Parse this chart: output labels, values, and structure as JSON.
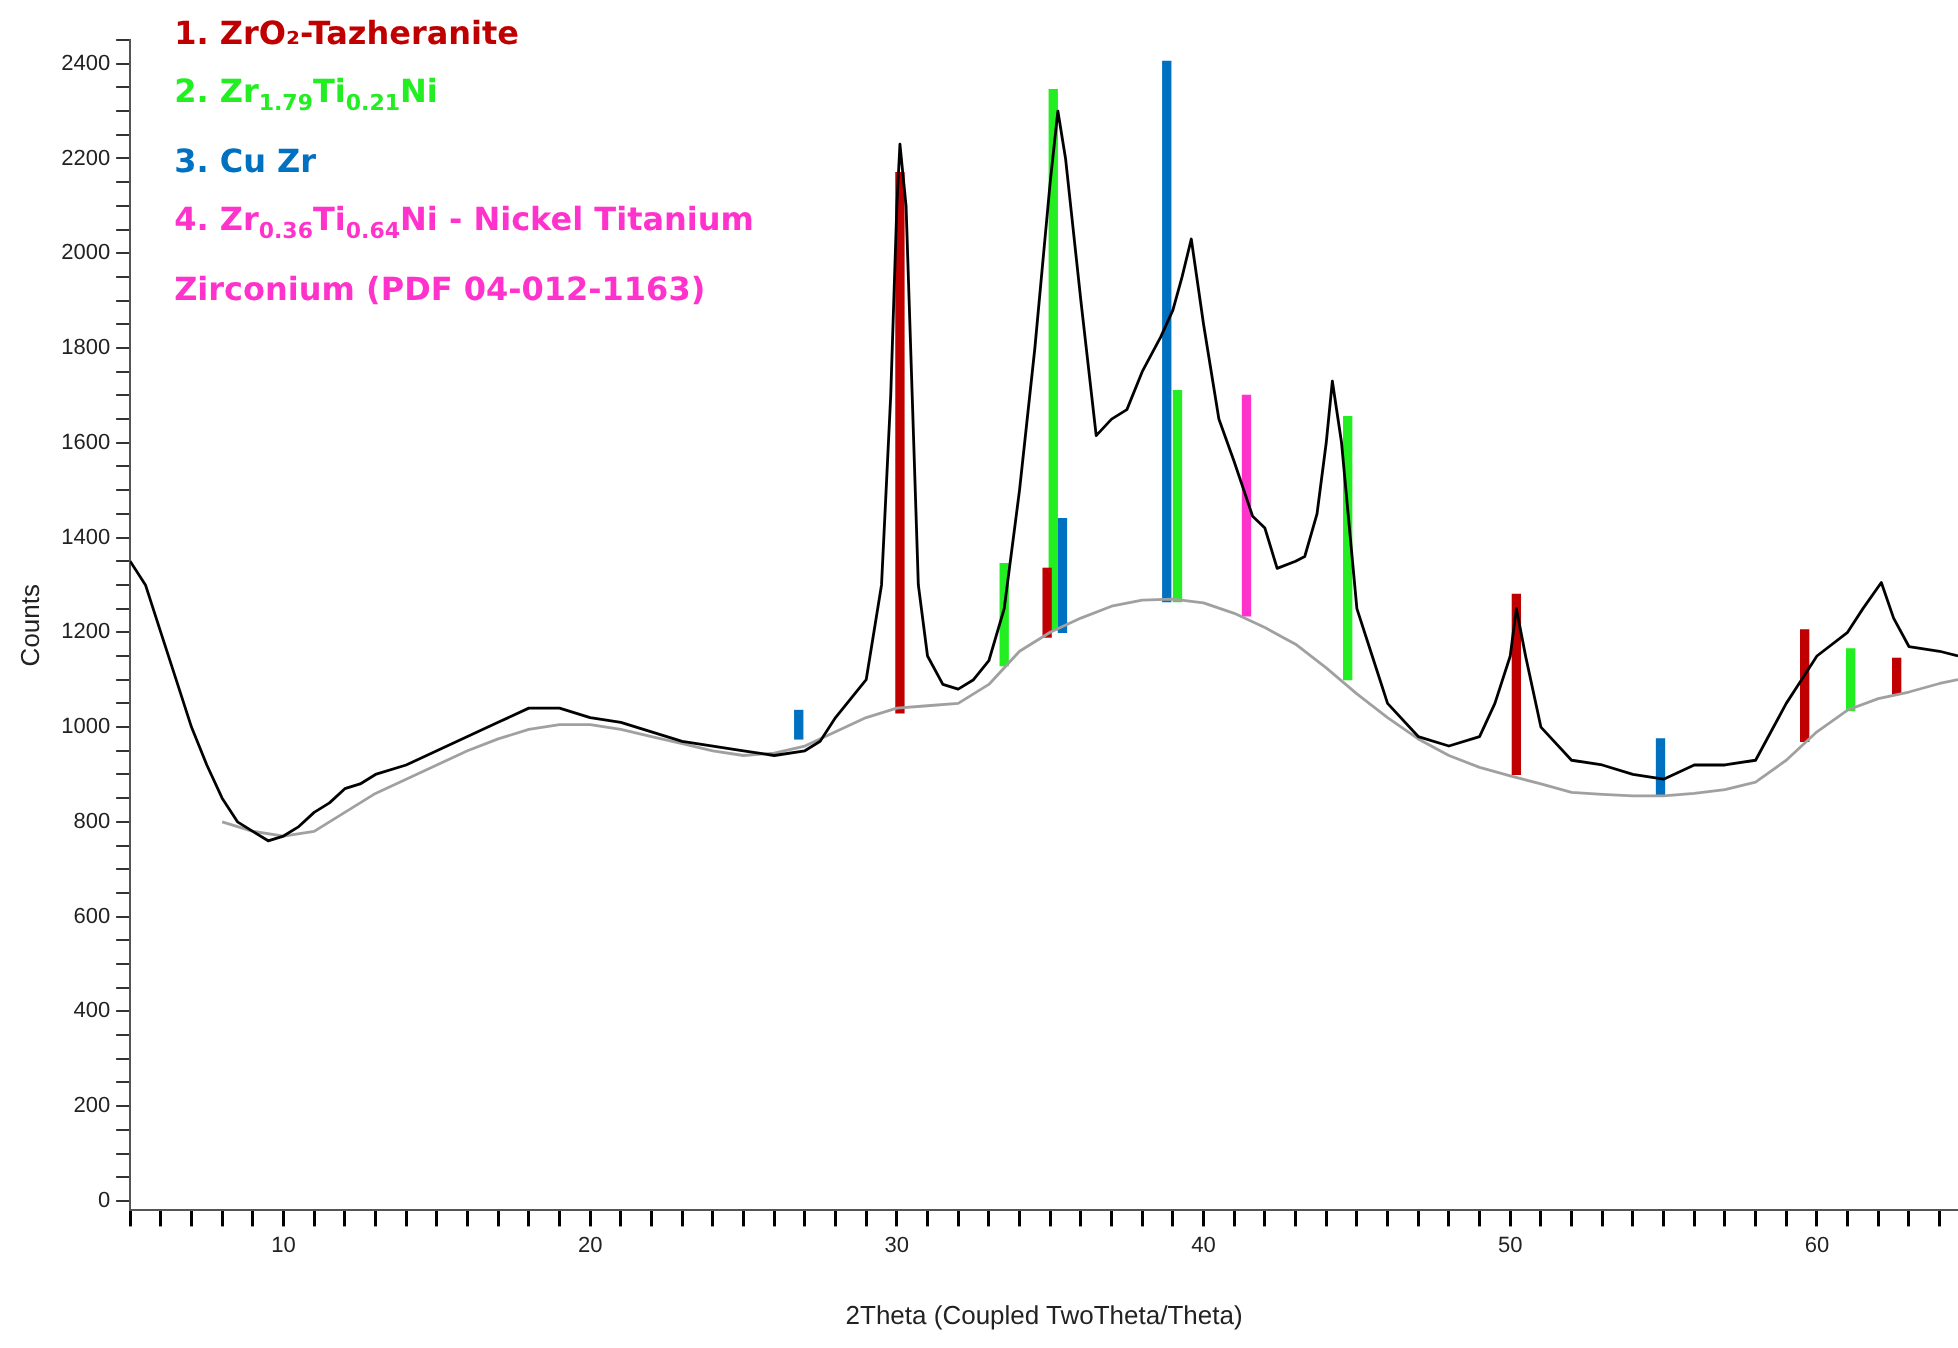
{
  "chart_data": {
    "type": "line",
    "xlabel": "2Theta (Coupled TwoTheta/Theta)",
    "ylabel": "Counts",
    "xlim": [
      5,
      64.6
    ],
    "ylim": [
      -20,
      2450
    ],
    "xticks": [
      {
        "value": 5,
        "label": null
      },
      {
        "value": 6,
        "label": null
      },
      {
        "value": 7,
        "label": null
      },
      {
        "value": 8,
        "label": null
      },
      {
        "value": 9,
        "label": null
      },
      10,
      {
        "value": 11,
        "label": null
      },
      {
        "value": 12,
        "label": null
      },
      {
        "value": 13,
        "label": null
      },
      {
        "value": 14,
        "label": null
      },
      {
        "value": 15,
        "label": null
      },
      {
        "value": 16,
        "label": null
      },
      {
        "value": 17,
        "label": null
      },
      {
        "value": 18,
        "label": null
      },
      {
        "value": 19,
        "label": null
      },
      20,
      {
        "value": 21,
        "label": null
      },
      {
        "value": 22,
        "label": null
      },
      {
        "value": 23,
        "label": null
      },
      {
        "value": 24,
        "label": null
      },
      {
        "value": 25,
        "label": null
      },
      {
        "value": 26,
        "label": null
      },
      {
        "value": 27,
        "label": null
      },
      {
        "value": 28,
        "label": null
      },
      {
        "value": 29,
        "label": null
      },
      30,
      {
        "value": 31,
        "label": null
      },
      {
        "value": 32,
        "label": null
      },
      {
        "value": 33,
        "label": null
      },
      {
        "value": 34,
        "label": null
      },
      {
        "value": 35,
        "label": null
      },
      {
        "value": 36,
        "label": null
      },
      {
        "value": 37,
        "label": null
      },
      {
        "value": 38,
        "label": null
      },
      {
        "value": 39,
        "label": null
      },
      40,
      {
        "value": 41,
        "label": null
      },
      {
        "value": 42,
        "label": null
      },
      {
        "value": 43,
        "label": null
      },
      {
        "value": 44,
        "label": null
      },
      {
        "value": 45,
        "label": null
      },
      {
        "value": 46,
        "label": null
      },
      {
        "value": 47,
        "label": null
      },
      {
        "value": 48,
        "label": null
      },
      {
        "value": 49,
        "label": null
      },
      50,
      {
        "value": 51,
        "label": null
      },
      {
        "value": 52,
        "label": null
      },
      {
        "value": 53,
        "label": null
      },
      {
        "value": 54,
        "label": null
      },
      {
        "value": 55,
        "label": null
      },
      {
        "value": 56,
        "label": null
      },
      {
        "value": 57,
        "label": null
      },
      {
        "value": 58,
        "label": null
      },
      {
        "value": 59,
        "label": null
      },
      60,
      {
        "value": 61,
        "label": null
      },
      {
        "value": 62,
        "label": null
      },
      {
        "value": 63,
        "label": null
      },
      {
        "value": 64,
        "label": null
      }
    ],
    "yticks": [
      0,
      {
        "value": 50,
        "label": null
      },
      {
        "value": 100,
        "label": null
      },
      {
        "value": 150,
        "label": null
      },
      200,
      {
        "value": 250,
        "label": null
      },
      {
        "value": 300,
        "label": null
      },
      {
        "value": 350,
        "label": null
      },
      400,
      {
        "value": 450,
        "label": null
      },
      {
        "value": 500,
        "label": null
      },
      {
        "value": 550,
        "label": null
      },
      600,
      {
        "value": 650,
        "label": null
      },
      {
        "value": 700,
        "label": null
      },
      {
        "value": 750,
        "label": null
      },
      800,
      {
        "value": 850,
        "label": null
      },
      {
        "value": 900,
        "label": null
      },
      {
        "value": 950,
        "label": null
      },
      1000,
      {
        "value": 1050,
        "label": null
      },
      {
        "value": 1100,
        "label": null
      },
      {
        "value": 1150,
        "label": null
      },
      1200,
      {
        "value": 1250,
        "label": null
      },
      {
        "value": 1300,
        "label": null
      },
      {
        "value": 1350,
        "label": null
      },
      1400,
      {
        "value": 1450,
        "label": null
      },
      {
        "value": 1500,
        "label": null
      },
      {
        "value": 1550,
        "label": null
      },
      1600,
      {
        "value": 1650,
        "label": null
      },
      {
        "value": 1700,
        "label": null
      },
      {
        "value": 1750,
        "label": null
      },
      1800,
      {
        "value": 1850,
        "label": null
      },
      {
        "value": 1900,
        "label": null
      },
      {
        "value": 1950,
        "label": null
      },
      2000,
      {
        "value": 2050,
        "label": null
      },
      {
        "value": 2100,
        "label": null
      },
      {
        "value": 2150,
        "label": null
      },
      2200,
      {
        "value": 2250,
        "label": null
      },
      {
        "value": 2300,
        "label": null
      },
      {
        "value": 2350,
        "label": null
      },
      2400,
      {
        "value": 2450,
        "label": null
      }
    ],
    "legend": "top left",
    "marker": "none",
    "series": [
      {
        "color": "#000000",
        "x": [
          5,
          5.5,
          6,
          6.5,
          7,
          7.5,
          8,
          8.5,
          9,
          9.5,
          10,
          10.5,
          11,
          11.5,
          12,
          12.5,
          13,
          14,
          15,
          16,
          17,
          18,
          19,
          20,
          21,
          22,
          23,
          24,
          25,
          26,
          27,
          27.5,
          28,
          28.5,
          29,
          29.5,
          29.8,
          30,
          30.1,
          30.3,
          30.5,
          30.7,
          31,
          31.5,
          32,
          32.5,
          33,
          33.5,
          34,
          34.5,
          35,
          35.25,
          35.5,
          36,
          36.5,
          37,
          37.5,
          38,
          38.6,
          39,
          39.3,
          39.6,
          40,
          40.5,
          41,
          41.6,
          42,
          42.4,
          43,
          43.3,
          43.7,
          44,
          44.2,
          44.5,
          45,
          45.5,
          46,
          47,
          48,
          49,
          49.5,
          50,
          50.2,
          50.5,
          51,
          52,
          53,
          54,
          55,
          56,
          57,
          58,
          59,
          59.5,
          60,
          61,
          61.5,
          62.1,
          62.5,
          63,
          64,
          64.6
        ],
        "values": [
          1350,
          1300,
          1200,
          1100,
          1000,
          920,
          850,
          800,
          780,
          760,
          770,
          790,
          820,
          840,
          870,
          880,
          900,
          920,
          950,
          980,
          1010,
          1040,
          1040,
          1020,
          1010,
          990,
          970,
          960,
          950,
          940,
          950,
          970,
          1020,
          1060,
          1100,
          1300,
          1700,
          2100,
          2230,
          2100,
          1700,
          1300,
          1150,
          1090,
          1080,
          1100,
          1140,
          1250,
          1500,
          1800,
          2150,
          2300,
          2200,
          1900,
          1615,
          1650,
          1670,
          1750,
          1823,
          1880,
          1950,
          2030,
          1850,
          1650,
          1560,
          1445,
          1420,
          1335,
          1350,
          1360,
          1450,
          1600,
          1730,
          1600,
          1250,
          1150,
          1050,
          980,
          960,
          980,
          1050,
          1150,
          1250,
          1150,
          1000,
          930,
          920,
          900,
          890,
          920,
          920,
          930,
          1050,
          1100,
          1150,
          1200,
          1250,
          1305,
          1230,
          1170,
          1160,
          1150
        ]
      },
      {
        "color": "#a0a0a0",
        "x": [
          8,
          9,
          10,
          11,
          12,
          13,
          14,
          15,
          16,
          17,
          18,
          19,
          20,
          21,
          22,
          23,
          24,
          25,
          26,
          27,
          28,
          29,
          30,
          31,
          32,
          33,
          34,
          35,
          36,
          37,
          38,
          39,
          40,
          41,
          42,
          43,
          44,
          45,
          46,
          47,
          48,
          49,
          50,
          51,
          52,
          53,
          54,
          55,
          56,
          57,
          58,
          59,
          60,
          61,
          62,
          63,
          64,
          64.6
        ],
        "values": [
          800,
          780,
          770,
          780,
          820,
          860,
          890,
          920,
          950,
          975,
          995,
          1005,
          1005,
          995,
          980,
          965,
          950,
          940,
          945,
          960,
          990,
          1020,
          1040,
          1045,
          1050,
          1090,
          1160,
          1200,
          1230,
          1255,
          1268,
          1270,
          1262,
          1240,
          1210,
          1175,
          1125,
          1070,
          1020,
          975,
          940,
          915,
          897,
          880,
          862,
          858,
          855,
          855,
          860,
          868,
          884,
          930,
          990,
          1036,
          1060,
          1074,
          1092,
          1100
        ]
      },
      {
        "type": "bar",
        "name": "1. ZrO₂-Tazheranite",
        "color": "#c00000",
        "x": [
          30.1,
          34.9,
          50.2,
          59.6,
          62.6
        ],
        "base": [
          1030,
          1190,
          900,
          970,
          1070
        ],
        "values": [
          1140,
          145,
          380,
          235,
          75
        ]
      },
      {
        "type": "bar",
        "name": "2. Zr$_{1.79}$Ti$_{0.21}$Ni",
        "color": "#22ee22",
        "x": [
          33.5,
          35.1,
          39.15,
          44.7,
          61.1
        ],
        "base": [
          1130,
          1205,
          1265,
          1100,
          1035
        ],
        "values": [
          215,
          1140,
          445,
          555,
          130
        ]
      },
      {
        "type": "bar",
        "name": "3. Cu Zr",
        "color": "#0070c0",
        "x": [
          26.8,
          35.4,
          38.8,
          54.9
        ],
        "base": [
          975,
          1200,
          1265,
          855
        ],
        "values": [
          60,
          240,
          1140,
          120
        ]
      },
      {
        "type": "bar",
        "name": "4. Zr$_{0.36}$Ti$_{0.64}$Ni - Nickel Titanium Zirconium (PDF 04-012-1163)",
        "color": "#ff33cc",
        "x": [
          41.4
        ],
        "base": [
          1235
        ],
        "values": [
          465
        ]
      }
    ]
  }
}
